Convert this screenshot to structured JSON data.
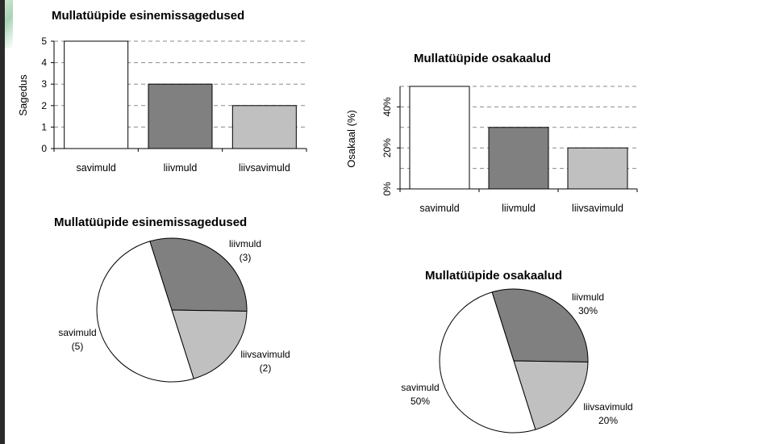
{
  "colors": {
    "savimuld": "#ffffff",
    "liivmuld": "#808080",
    "liivsavimuld": "#c0c0c0"
  },
  "chart_data": [
    {
      "type": "bar",
      "title": "Mullatüüpide esinemissagedused",
      "ylabel": "Sagedus",
      "categories": [
        "savimuld",
        "liivmuld",
        "liivsavimuld"
      ],
      "values": [
        5,
        3,
        2
      ],
      "ylim": [
        0,
        5
      ],
      "yticks": [
        0,
        1,
        2,
        3,
        4,
        5
      ],
      "grid": true
    },
    {
      "type": "bar",
      "title": "Mullatüüpide osakaalud",
      "ylabel": "Osakaal (%)",
      "categories": [
        "savimuld",
        "liivmuld",
        "liivsavimuld"
      ],
      "values": [
        50,
        30,
        20
      ],
      "ylim": [
        0,
        50
      ],
      "yticks": [
        "0%",
        "20%",
        "40%"
      ],
      "grid": true
    },
    {
      "type": "pie",
      "title": "Mullatüüpide esinemissagedused",
      "slices": [
        {
          "category": "liivmuld",
          "value": 3,
          "label": "liivmuld",
          "sub": "(3)"
        },
        {
          "category": "liivsavimuld",
          "value": 2,
          "label": "liivsavimuld",
          "sub": "(2)"
        },
        {
          "category": "savimuld",
          "value": 5,
          "label": "savimuld",
          "sub": "(5)"
        }
      ]
    },
    {
      "type": "pie",
      "title": "Mullatüüpide osakaalud",
      "slices": [
        {
          "category": "liivmuld",
          "value": 30,
          "label": "liivmuld",
          "sub": "30%"
        },
        {
          "category": "liivsavimuld",
          "value": 20,
          "label": "liivsavimuld",
          "sub": "20%"
        },
        {
          "category": "savimuld",
          "value": 50,
          "label": "savimuld",
          "sub": "50%"
        }
      ]
    }
  ]
}
